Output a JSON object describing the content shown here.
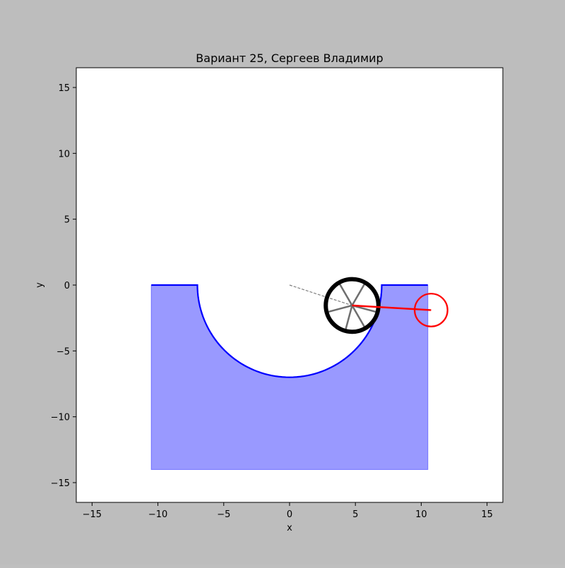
{
  "chart_data": {
    "type": "line",
    "title": "Вариант 25, Сергеев Владимир",
    "xlabel": "x",
    "ylabel": "y",
    "xlim": [
      -16.2,
      16.2
    ],
    "ylim": [
      -16.5,
      16.5
    ],
    "xticks": [
      -15,
      -10,
      -5,
      0,
      5,
      10,
      15
    ],
    "yticks": [
      -15,
      -10,
      -5,
      0,
      5,
      10,
      15
    ],
    "xtick_labels": [
      "−15",
      "−10",
      "−5",
      "0",
      "5",
      "10",
      "15"
    ],
    "ytick_labels": [
      "−15",
      "−10",
      "−5",
      "0",
      "5",
      "10",
      "15"
    ],
    "grid": false,
    "track": {
      "color": "#0000ff",
      "fill_color": "#9999ff",
      "left_flat": [
        [
          -10.5,
          0
        ],
        [
          -7,
          0
        ]
      ],
      "semicircle": {
        "center": [
          0,
          0
        ],
        "radius": 7
      },
      "right_flat": [
        [
          7,
          0
        ],
        [
          10.5,
          0
        ]
      ],
      "fill_bottom": -14
    },
    "wheel": {
      "center": [
        4.75,
        -1.55
      ],
      "radius": 2,
      "color": "#000000",
      "spoke_color": "#6e6e6e",
      "spoke_angles_deg": [
        -15,
        60,
        120,
        195,
        255,
        300
      ]
    },
    "guide_line": {
      "from": [
        0,
        0
      ],
      "to": [
        4.75,
        -1.55
      ],
      "color": "#808080",
      "style": "dashed"
    },
    "pendulum": {
      "pivot": [
        4.75,
        -1.55
      ],
      "bob_center": [
        10.75,
        -1.9
      ],
      "bob_radius": 1.25,
      "color": "#ff0000"
    }
  }
}
